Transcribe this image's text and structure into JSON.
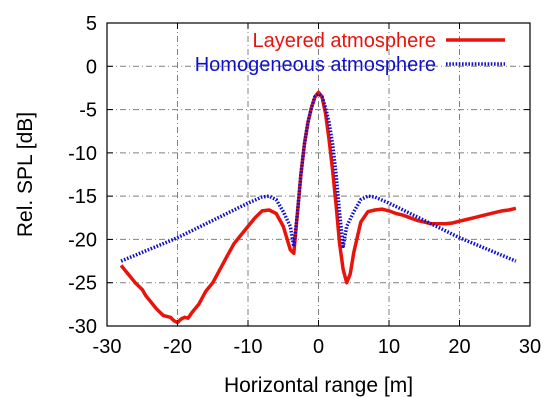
{
  "chart_data": {
    "type": "line",
    "title": "",
    "xlabel": "Horizontal range [m]",
    "ylabel": "Rel. SPL [dB]",
    "xlim": [
      -30,
      30
    ],
    "ylim": [
      -30,
      5
    ],
    "xticks": [
      -30,
      -20,
      -10,
      0,
      10,
      20,
      30
    ],
    "yticks": [
      5,
      0,
      -5,
      -10,
      -15,
      -20,
      -25,
      -30
    ],
    "grid": true,
    "legend_position": "top-right",
    "series": [
      {
        "name": "Layered atmosphere",
        "color": "#e8140c",
        "style": "solid",
        "x": [
          -28,
          -27,
          -26,
          -25,
          -24.5,
          -24,
          -23,
          -22,
          -21,
          -20.5,
          -20,
          -19.5,
          -19,
          -18.5,
          -18,
          -17.5,
          -17,
          -16,
          -15,
          -14,
          -13,
          -12,
          -11,
          -10,
          -9,
          -8,
          -7,
          -6,
          -5,
          -4,
          -3.5,
          -3,
          -2.5,
          -2,
          -1.5,
          -1,
          -0.5,
          0,
          0.5,
          1,
          1.5,
          2,
          2.5,
          3,
          3.5,
          4,
          4.5,
          5,
          6,
          7,
          8,
          9,
          10,
          11,
          12,
          13,
          14,
          15,
          16,
          17,
          18,
          19,
          20,
          21,
          22,
          23,
          24,
          25,
          26,
          27,
          28
        ],
        "y": [
          -23,
          -24,
          -25,
          -25.8,
          -26.5,
          -27,
          -28,
          -28.8,
          -29,
          -29.4,
          -29.6,
          -29.2,
          -29,
          -29.1,
          -28.5,
          -28,
          -27.5,
          -26,
          -25,
          -23.5,
          -22,
          -20.5,
          -19.5,
          -18.5,
          -17.5,
          -16.7,
          -16.6,
          -17,
          -18.5,
          -21.2,
          -21.6,
          -17,
          -12.5,
          -9,
          -6.5,
          -4.8,
          -3.5,
          -3,
          -3.5,
          -5.5,
          -8.5,
          -12,
          -16,
          -20.5,
          -23.5,
          -25,
          -24,
          -21.5,
          -18,
          -16.8,
          -16.6,
          -16.5,
          -16.7,
          -17,
          -17.2,
          -17.5,
          -17.8,
          -18,
          -18.2,
          -18.2,
          -18.2,
          -18.1,
          -17.9,
          -17.7,
          -17.5,
          -17.3,
          -17.1,
          -16.9,
          -16.7,
          -16.6,
          -16.4
        ]
      },
      {
        "name": "Homogeneous atmosphere",
        "color": "#1010cc",
        "style": "dotted",
        "x": [
          -28,
          -20,
          -10,
          -8,
          -7,
          -6,
          -5,
          -4,
          -3.5,
          -3,
          -2.5,
          -2,
          -1.5,
          -1,
          -0.5,
          0,
          0.5,
          1,
          1.5,
          2,
          2.5,
          3,
          3.5,
          4,
          5,
          6,
          7,
          8,
          10,
          20,
          28
        ],
        "y": [
          -22.5,
          -19.8,
          -15.8,
          -15.1,
          -15,
          -15.4,
          -16.8,
          -18.5,
          -20.8,
          -17,
          -12.5,
          -9,
          -6.5,
          -4.8,
          -3.5,
          -3.2,
          -3.5,
          -4.8,
          -6.5,
          -9,
          -12.5,
          -17,
          -20.8,
          -18.5,
          -16.8,
          -15.4,
          -15,
          -15.1,
          -15.8,
          -19.8,
          -22.5
        ]
      }
    ]
  }
}
